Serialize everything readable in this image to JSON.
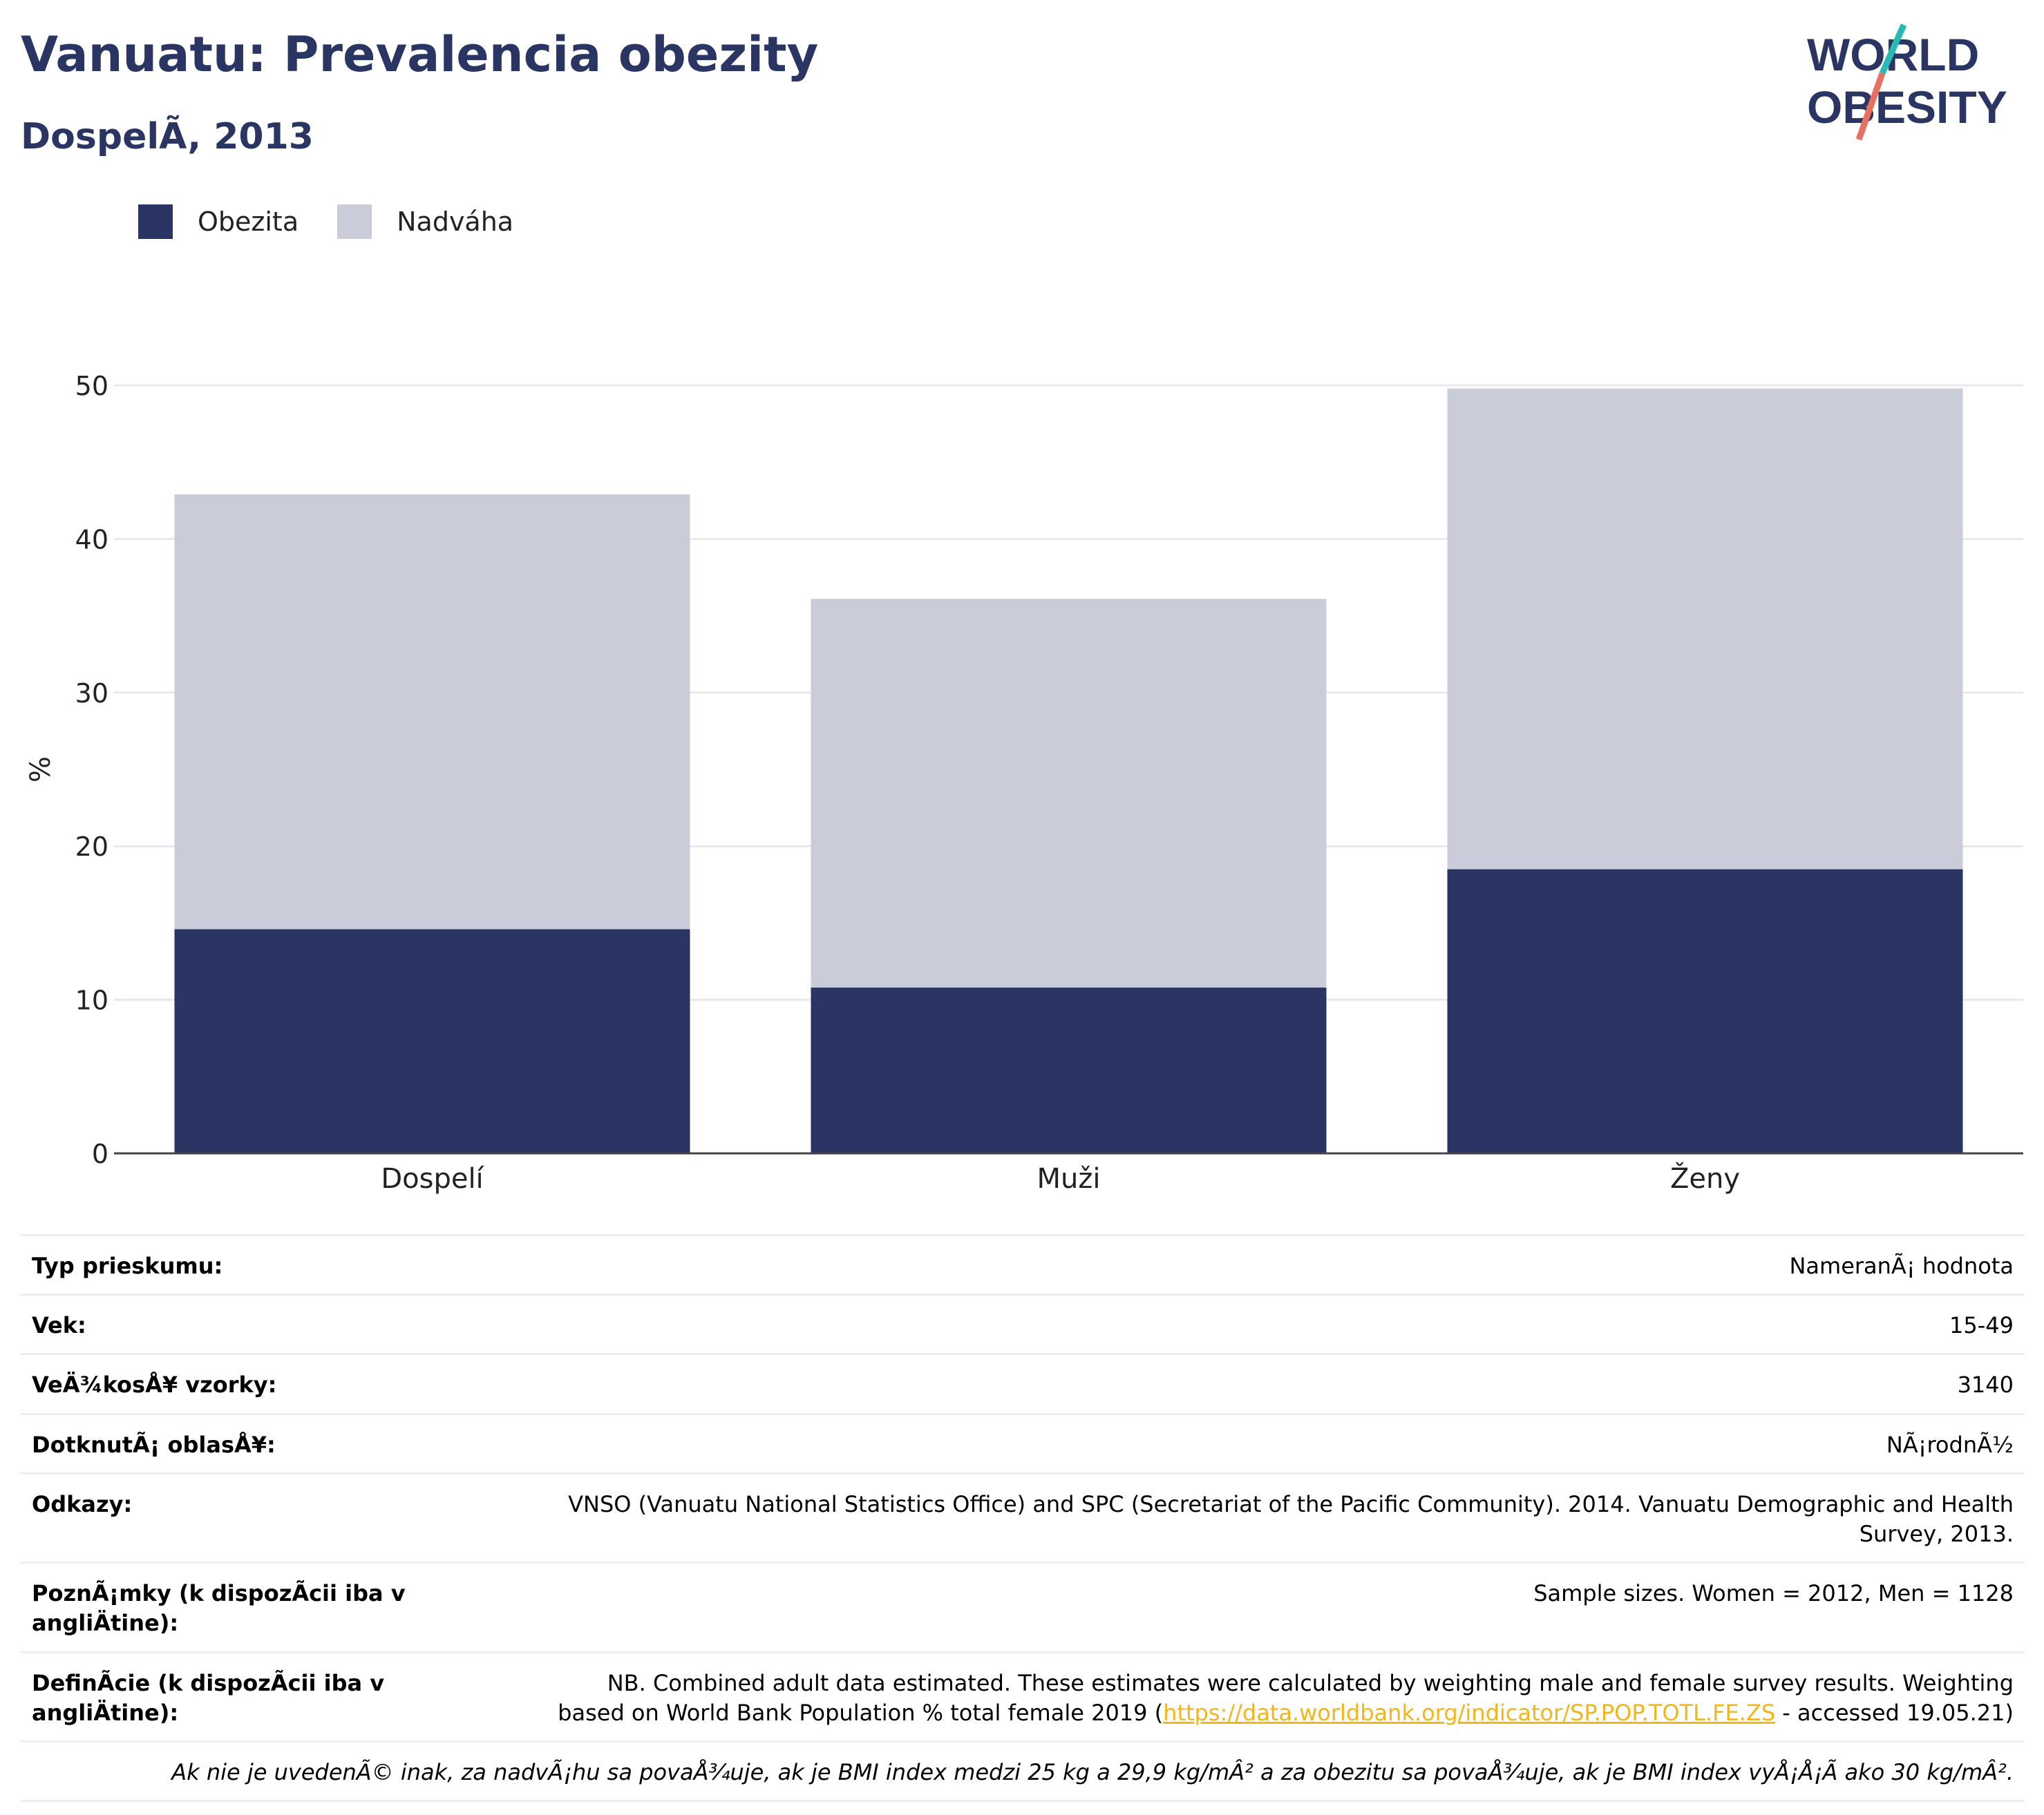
{
  "header": {
    "title": "Vanuatu: Prevalencia obezity",
    "subtitle": "DospelÃ, 2013",
    "logo_line1": "WORLD",
    "logo_line2": "OBESITY"
  },
  "legend": [
    {
      "label": "Obezita",
      "color": "#2a3563"
    },
    {
      "label": "Nadváha",
      "color": "#cacdd9"
    }
  ],
  "chart_data": {
    "type": "bar",
    "stacked": true,
    "categories": [
      "Dospelí",
      "Muži",
      "Ženy"
    ],
    "series": [
      {
        "name": "Obezita",
        "color": "#2a3563",
        "values": [
          14.6,
          10.8,
          18.5
        ]
      },
      {
        "name": "Nadváha",
        "color": "#cacdd9",
        "values": [
          28.3,
          25.3,
          31.3
        ]
      }
    ],
    "totals": [
      42.9,
      36.1,
      49.8
    ],
    "ylabel": "%",
    "ylim": [
      0,
      50
    ],
    "yticks": [
      0,
      10,
      20,
      30,
      40,
      50
    ],
    "grid": true,
    "legend_position": "top-left"
  },
  "info": {
    "survey_type_label": "Typ prieskumu:",
    "survey_type_value": "NameranÃ¡ hodnota",
    "age_label": "Vek:",
    "age_value": "15-49",
    "sample_label": "VeÄ¾kosÅ¥ vzorky:",
    "sample_value": "3140",
    "area_label": "DotknutÃ¡ oblasÅ¥:",
    "area_value": "NÃ¡rodnÃ½",
    "refs_label": "Odkazy:",
    "refs_value": "VNSO (Vanuatu National Statistics Office) and SPC (Secretariat of the Pacific Community). 2014. Vanuatu Demographic and Health Survey, 2013.",
    "notes_label": "PoznÃ¡mky (k dispozÃcii iba v angliÄtine):",
    "notes_value": "Sample sizes. Women = 2012, Men = 1128",
    "def_label": "DefinÃcie (k dispozÃcii iba v angliÄtine):",
    "def_value_1": "NB. Combined adult data estimated. These estimates were calculated by weighting male and female survey results. Weighting based on World Bank Population % total female 2019 (",
    "def_link": "https://data.worldbank.org/indicator/SP.POP.TOTL.FE.ZS",
    "def_value_2": " - accessed 19.05.21)",
    "footnote": "Ak nie je uvedenÃ© inak, za nadvÃ¡hu sa povaÅ¾uje, ak je BMI index medzi 25 kg a 29,9 kg/mÂ² a za obezitu sa povaÅ¾uje, ak je BMI index vyÅ¡Å¡Ã ako 30 kg/mÂ²."
  }
}
